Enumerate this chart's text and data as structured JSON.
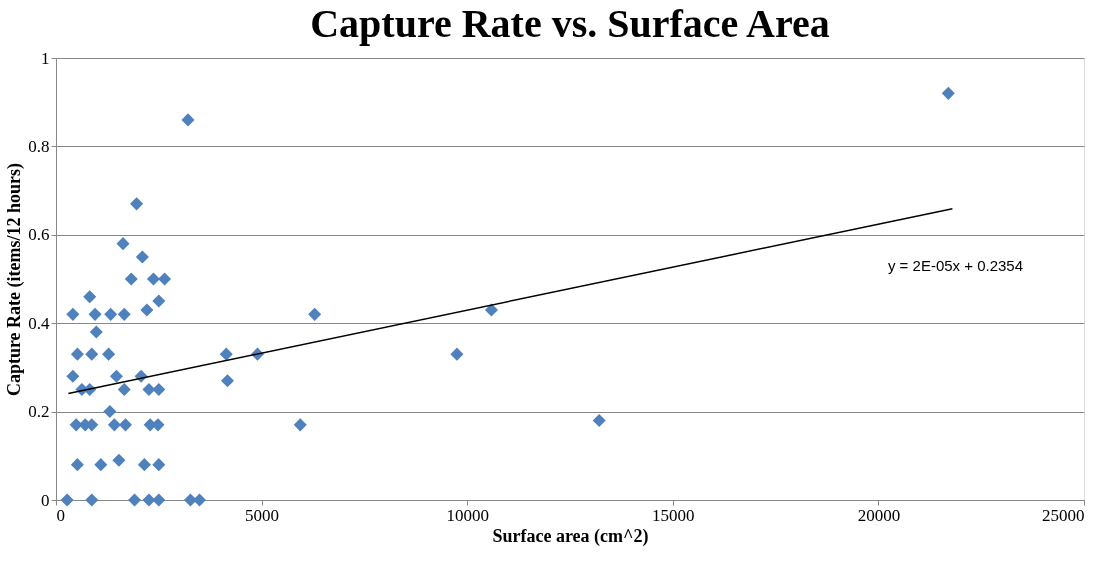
{
  "chart_data": {
    "type": "scatter",
    "title": "Capture Rate vs. Surface Area",
    "xlabel": "Surface area (cm^2)",
    "ylabel": "Capture Rate (items/12 hours)",
    "xlim": [
      0,
      25000
    ],
    "xticks": [
      0,
      5000,
      10000,
      15000,
      20000,
      25000
    ],
    "ylim": [
      0,
      1
    ],
    "yticks": [
      0,
      0.2,
      0.4,
      0.6,
      0.8,
      1
    ],
    "grid": "y",
    "legend": false,
    "marker": "diamond",
    "series": [
      {
        "color": "#4f81bd",
        "x": [
          3210,
          21700,
          1960,
          1630,
          2100,
          1830,
          2370,
          2640,
          2500,
          2210,
          820,
          410,
          950,
          1330,
          1660,
          980,
          520,
          870,
          1280,
          4140,
          4900,
          4170,
          6290,
          410,
          630,
          820,
          1470,
          1660,
          2070,
          2260,
          2500,
          1310,
          490,
          710,
          870,
          1420,
          1690,
          2290,
          2480,
          5940,
          13210,
          9750,
          10590,
          520,
          1090,
          1530,
          2150,
          2500,
          270,
          870,
          1910,
          2260,
          2500,
          3270,
          3490
        ],
        "values": [
          0.86,
          0.92,
          0.67,
          0.58,
          0.55,
          0.5,
          0.5,
          0.5,
          0.45,
          0.43,
          0.46,
          0.42,
          0.42,
          0.42,
          0.42,
          0.38,
          0.33,
          0.33,
          0.33,
          0.33,
          0.33,
          0.27,
          0.42,
          0.28,
          0.25,
          0.25,
          0.28,
          0.25,
          0.28,
          0.25,
          0.25,
          0.2,
          0.17,
          0.17,
          0.17,
          0.17,
          0.17,
          0.17,
          0.17,
          0.17,
          0.18,
          0.33,
          0.43,
          0.08,
          0.08,
          0.09,
          0.08,
          0.08,
          0,
          0,
          0,
          0,
          0,
          0,
          0
        ]
      },
      {
        "type": "line",
        "marker": "none",
        "color": "#000000",
        "x": [
          300,
          21800
        ],
        "values": [
          0.241,
          0.659
        ]
      }
    ],
    "annotations": [
      "y = 2E-05x + 0.2354"
    ]
  }
}
